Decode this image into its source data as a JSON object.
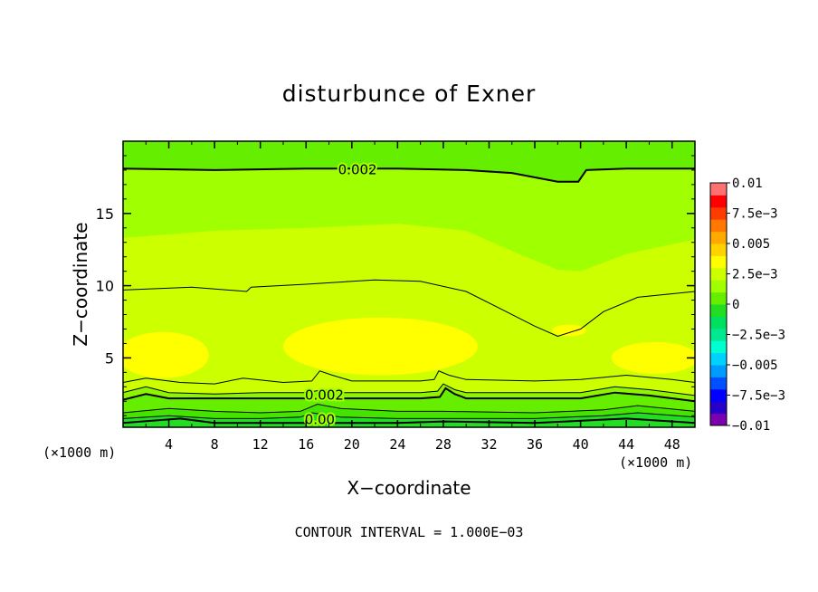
{
  "chart_data": {
    "type": "heatmap",
    "title": "disturbunce of Exner",
    "xlabel": "X−coordinate",
    "ylabel": "Z−coordinate",
    "x_unit_left": "(×1000 m)",
    "x_unit_right": "(×1000 m)",
    "footer": "CONTOUR INTERVAL = 1.000E−03",
    "xlim": [
      0,
      50
    ],
    "ylim": [
      0.2,
      20
    ],
    "x_ticks": [
      {
        "value": 4,
        "label": "4"
      },
      {
        "value": 8,
        "label": "8"
      },
      {
        "value": 12,
        "label": "12"
      },
      {
        "value": 16,
        "label": "16"
      },
      {
        "value": 20,
        "label": "20"
      },
      {
        "value": 24,
        "label": "24"
      },
      {
        "value": 28,
        "label": "28"
      },
      {
        "value": 32,
        "label": "32"
      },
      {
        "value": 36,
        "label": "36"
      },
      {
        "value": 40,
        "label": "40"
      },
      {
        "value": 44,
        "label": "44"
      },
      {
        "value": 48,
        "label": "48"
      }
    ],
    "y_ticks": [
      {
        "value": 5,
        "label": "5"
      },
      {
        "value": 10,
        "label": "10"
      },
      {
        "value": 15,
        "label": "15"
      }
    ],
    "contour_labels": [
      {
        "text": "0.002",
        "x": 20.5,
        "y": 18.1
      },
      {
        "text": "0.002",
        "x": 17.6,
        "y": 2.5
      },
      {
        "text": "0.00",
        "x": 17.2,
        "y": 0.8
      }
    ],
    "colorbar": {
      "range": [
        -0.01,
        0.01
      ],
      "ticks": [
        {
          "value": 0.01,
          "label": "0.01"
        },
        {
          "value": 0.0075,
          "label": "7.5e−3"
        },
        {
          "value": 0.005,
          "label": "0.005"
        },
        {
          "value": 0.0025,
          "label": "2.5e−3"
        },
        {
          "value": 0,
          "label": "0"
        },
        {
          "value": -0.0025,
          "label": "−2.5e−3"
        },
        {
          "value": -0.005,
          "label": "−0.005"
        },
        {
          "value": -0.0075,
          "label": "−7.5e−3"
        },
        {
          "value": -0.01,
          "label": "−0.01"
        }
      ],
      "colors": [
        "#7a00b0",
        "#2600c8",
        "#0000ff",
        "#0050ff",
        "#009bff",
        "#00d2ff",
        "#00ffd0",
        "#00e890",
        "#00e060",
        "#22dd22",
        "#66ee00",
        "#a0ff00",
        "#ccff00",
        "#ffff00",
        "#ffd200",
        "#ffaa00",
        "#ff7800",
        "#ff3c00",
        "#ff0000",
        "#ff7070"
      ]
    },
    "fields": {
      "top_band": {
        "level": 0.0015,
        "color": "#66ee00"
      },
      "upper_green": {
        "level": 0.002,
        "color": "#a0ff00"
      },
      "mid_band": {
        "level": 0.0025,
        "color": "#ccff00"
      },
      "max_band": {
        "level": 0.003,
        "color": "#ffff00"
      },
      "low_1": {
        "level": 0.0015,
        "color": "#8ef500"
      },
      "low_2": {
        "level": 0.001,
        "color": "#66ee00"
      },
      "low_3": {
        "level": 0.0005,
        "color": "#44e400"
      },
      "low_4": {
        "level": 0.0,
        "color": "#22dd22"
      }
    },
    "contours": {
      "c002_top": [
        [
          0,
          18.1
        ],
        [
          8,
          18.0
        ],
        [
          16,
          18.1
        ],
        [
          24,
          18.1
        ],
        [
          30,
          18.0
        ],
        [
          34,
          17.8
        ],
        [
          38,
          17.2
        ],
        [
          39.8,
          17.2
        ],
        [
          40.5,
          18.0
        ],
        [
          44,
          18.1
        ],
        [
          50,
          18.1
        ]
      ],
      "c0025_mid": [
        [
          0,
          9.7
        ],
        [
          6,
          9.9
        ],
        [
          10.8,
          9.6
        ],
        [
          11.2,
          9.9
        ],
        [
          16,
          10.1
        ],
        [
          22,
          10.4
        ],
        [
          26,
          10.3
        ],
        [
          30,
          9.6
        ],
        [
          33,
          8.4
        ],
        [
          36,
          7.2
        ],
        [
          38,
          6.5
        ],
        [
          40,
          7.0
        ],
        [
          42,
          8.2
        ],
        [
          45,
          9.2
        ],
        [
          50,
          9.6
        ]
      ],
      "c003_bottom_edge": [
        [
          0,
          3.3
        ],
        [
          2,
          3.6
        ],
        [
          5,
          3.3
        ],
        [
          8,
          3.2
        ],
        [
          10.5,
          3.6
        ],
        [
          14,
          3.3
        ],
        [
          16.5,
          3.4
        ],
        [
          17.2,
          4.1
        ],
        [
          18.3,
          3.8
        ],
        [
          20,
          3.4
        ],
        [
          26,
          3.4
        ],
        [
          27.2,
          3.5
        ],
        [
          27.6,
          4.1
        ],
        [
          28.5,
          3.8
        ],
        [
          30,
          3.5
        ],
        [
          36,
          3.4
        ],
        [
          40,
          3.5
        ],
        [
          44,
          3.8
        ],
        [
          48,
          3.5
        ],
        [
          50,
          3.3
        ]
      ],
      "c0025_low": [
        [
          0,
          2.6
        ],
        [
          2,
          3.0
        ],
        [
          4,
          2.6
        ],
        [
          8,
          2.5
        ],
        [
          12,
          2.6
        ],
        [
          16,
          2.6
        ],
        [
          17.5,
          2.8
        ],
        [
          19,
          2.6
        ],
        [
          26,
          2.6
        ],
        [
          27.5,
          2.7
        ],
        [
          28,
          3.2
        ],
        [
          29,
          2.8
        ],
        [
          30,
          2.6
        ],
        [
          40,
          2.6
        ],
        [
          43,
          3.0
        ],
        [
          46,
          2.8
        ],
        [
          50,
          2.4
        ]
      ],
      "c002_low": [
        [
          0,
          2.1
        ],
        [
          2,
          2.5
        ],
        [
          4,
          2.2
        ],
        [
          8,
          2.2
        ],
        [
          12,
          2.2
        ],
        [
          16,
          2.2
        ],
        [
          17.8,
          2.3
        ],
        [
          19,
          2.2
        ],
        [
          26,
          2.2
        ],
        [
          27.7,
          2.3
        ],
        [
          28.2,
          2.9
        ],
        [
          29,
          2.5
        ],
        [
          30,
          2.2
        ],
        [
          40,
          2.2
        ],
        [
          43,
          2.6
        ],
        [
          46,
          2.4
        ],
        [
          50,
          2.0
        ]
      ],
      "c0015_low": [
        [
          0,
          1.2
        ],
        [
          4,
          1.5
        ],
        [
          8,
          1.3
        ],
        [
          12,
          1.2
        ],
        [
          15.5,
          1.3
        ],
        [
          17,
          1.8
        ],
        [
          19,
          1.5
        ],
        [
          24,
          1.3
        ],
        [
          28,
          1.3
        ],
        [
          36,
          1.2
        ],
        [
          42,
          1.4
        ],
        [
          45,
          1.7
        ],
        [
          50,
          1.3
        ]
      ],
      "c001_low": [
        [
          0,
          0.8
        ],
        [
          4,
          1.0
        ],
        [
          8,
          0.8
        ],
        [
          12,
          0.8
        ],
        [
          15.5,
          0.9
        ],
        [
          16.5,
          1.2
        ],
        [
          19,
          0.9
        ],
        [
          24,
          0.8
        ],
        [
          28,
          0.8
        ],
        [
          36,
          0.8
        ],
        [
          42,
          1.0
        ],
        [
          45,
          1.2
        ],
        [
          50,
          0.9
        ]
      ],
      "c000_low": [
        [
          0,
          0.5
        ],
        [
          5,
          0.8
        ],
        [
          8,
          0.5
        ],
        [
          12,
          0.5
        ],
        [
          17,
          0.5
        ],
        [
          24,
          0.5
        ],
        [
          28,
          0.6
        ],
        [
          36,
          0.5
        ],
        [
          44,
          0.8
        ],
        [
          50,
          0.5
        ]
      ]
    },
    "yellow_blobs": [
      {
        "cx": 22.5,
        "cy": 5.8,
        "rx": 8.5,
        "ry": 2.0
      },
      {
        "cx": 3.5,
        "cy": 5.2,
        "rx": 4.0,
        "ry": 1.6
      },
      {
        "cx": 46.5,
        "cy": 5.0,
        "rx": 3.8,
        "ry": 1.1
      },
      {
        "cx": 39.0,
        "cy": 6.9,
        "rx": 1.5,
        "ry": 0.4
      }
    ]
  }
}
